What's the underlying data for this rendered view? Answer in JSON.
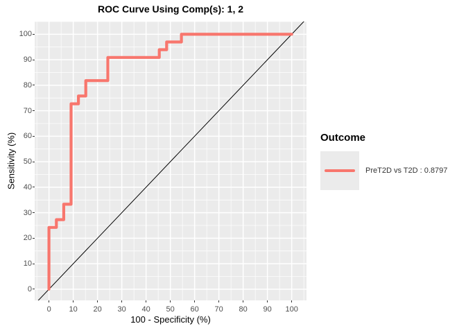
{
  "title": "ROC Curve Using Comp(s): 1, 2",
  "axes": {
    "x": {
      "label": "100 - Specificity (%)",
      "ticks": [
        0,
        10,
        20,
        30,
        40,
        50,
        60,
        70,
        80,
        90,
        100
      ],
      "lim": [
        -5.9,
        106.1
      ]
    },
    "y": {
      "label": "Sensitivity (%)",
      "ticks": [
        0,
        10,
        20,
        30,
        40,
        50,
        60,
        70,
        80,
        90,
        100
      ],
      "lim": [
        -4.4,
        105.0
      ]
    }
  },
  "legend": {
    "title": "Outcome",
    "entries": [
      {
        "label": "PreT2D vs T2D : 0.8797",
        "color": "#F8766D"
      }
    ]
  },
  "chart_data": {
    "type": "line",
    "title": "ROC Curve Using Comp(s): 1, 2",
    "xlabel": "100 - Specificity (%)",
    "ylabel": "Sensitivity (%)",
    "xlim": [
      0,
      100
    ],
    "ylim": [
      0,
      100
    ],
    "grid": true,
    "minor_grid": true,
    "legend_position": "right",
    "series": [
      {
        "name": "PreT2D vs T2D",
        "auc": 0.8797,
        "color": "#F8766D",
        "points": [
          [
            0,
            0
          ],
          [
            0,
            24.24
          ],
          [
            3.03,
            24.24
          ],
          [
            3.03,
            27.27
          ],
          [
            6.06,
            27.27
          ],
          [
            6.06,
            33.33
          ],
          [
            9.09,
            33.33
          ],
          [
            9.09,
            72.73
          ],
          [
            12.12,
            72.73
          ],
          [
            12.12,
            75.76
          ],
          [
            15.15,
            75.76
          ],
          [
            15.15,
            81.82
          ],
          [
            24.24,
            81.82
          ],
          [
            24.24,
            90.91
          ],
          [
            45.45,
            90.91
          ],
          [
            45.45,
            93.94
          ],
          [
            48.48,
            93.94
          ],
          [
            48.48,
            96.97
          ],
          [
            54.55,
            96.97
          ],
          [
            54.55,
            100
          ],
          [
            100,
            100
          ]
        ]
      }
    ],
    "reference_line": {
      "type": "diagonal",
      "x1": -10,
      "y1": -10,
      "x2": 110,
      "y2": 110,
      "color": "#000000"
    }
  },
  "colors": {
    "curve": "#F8766D",
    "panel_bg": "#EBEBEB",
    "grid": "#FFFFFF",
    "tick_label": "#4D4D4D",
    "tick_mark": "#333333",
    "diagonal": "#000000",
    "background": "#FFFFFF"
  }
}
